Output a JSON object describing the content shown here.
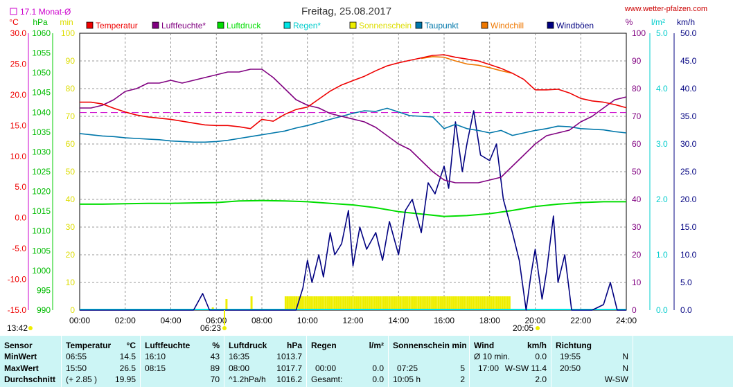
{
  "title": "Freitag, 25.08.2017",
  "website": "www.wetter-pfalzen.com",
  "monthly_avg_label": "17.1 Monat-Ø",
  "time_markers": {
    "left_time": "13:42",
    "sunrise": "06:23",
    "sunset": "20:05"
  },
  "colors": {
    "temperature": "#ee0000",
    "humidity": "#800080",
    "pressure": "#00dd00",
    "rain": "#00e5e5",
    "sunshine": "#eeee00",
    "dewpoint": "#0077aa",
    "windchill": "#ee7700",
    "gusts": "#000080",
    "month_avg": "#cc00cc"
  },
  "legend": [
    {
      "label": "Temperatur",
      "color": "#ee0000"
    },
    {
      "label": "Luftfeuchte*",
      "color": "#800080"
    },
    {
      "label": "Luftdruck",
      "color": "#00dd00"
    },
    {
      "label": "Regen*",
      "color": "#00e5e5"
    },
    {
      "label": "Sonnenschein",
      "color": "#eeee00"
    },
    {
      "label": "Taupunkt",
      "color": "#0077aa"
    },
    {
      "label": "Windchill",
      "color": "#ee7700"
    },
    {
      "label": "Windböen",
      "color": "#000080"
    }
  ],
  "chart_data": {
    "type": "line",
    "x_ticks": [
      "00:00",
      "02:00",
      "04:00",
      "06:00",
      "08:00",
      "10:00",
      "12:00",
      "14:00",
      "16:00",
      "18:00",
      "20:00",
      "22:00",
      "24:00"
    ],
    "xlim": [
      0,
      24
    ],
    "axes": {
      "temp": {
        "unit": "°C",
        "range": [
          -15,
          30
        ],
        "ticks": [
          "30.0",
          "25.0",
          "20.0",
          "15.0",
          "10.0",
          "5.0",
          "0.0",
          "-5.0",
          "-10.0",
          "-15.0"
        ]
      },
      "pressure": {
        "unit": "hPa",
        "range": [
          990,
          1060
        ],
        "ticks": [
          "1060",
          "1055",
          "1050",
          "1045",
          "1040",
          "1035",
          "1030",
          "1025",
          "1020",
          "1015",
          "1010",
          "1005",
          "1000",
          "995",
          "990"
        ]
      },
      "sun": {
        "unit": "min",
        "range": [
          0,
          100
        ],
        "ticks": [
          "100",
          "90",
          "80",
          "70",
          "60",
          "50",
          "40",
          "30",
          "20",
          "10",
          "0"
        ]
      },
      "humidity": {
        "unit": "%",
        "range": [
          0,
          100
        ],
        "ticks": [
          "100",
          "90",
          "80",
          "70",
          "60",
          "50",
          "40",
          "30",
          "20",
          "10",
          "0"
        ]
      },
      "rain": {
        "unit": "l/m²",
        "range": [
          0,
          5
        ],
        "ticks": [
          "5.0",
          "4.0",
          "3.0",
          "2.0",
          "1.0",
          "0.0"
        ]
      },
      "wind": {
        "unit": "km/h",
        "range": [
          0,
          50
        ],
        "ticks": [
          "50.0",
          "45.0",
          "40.0",
          "35.0",
          "30.0",
          "25.0",
          "20.0",
          "15.0",
          "10.0",
          "5.0",
          "0.0"
        ]
      }
    },
    "month_avg_temp": 17.1,
    "series": [
      {
        "name": "Temperatur",
        "axis": "temp",
        "x": [
          0,
          0.5,
          1,
          1.5,
          2,
          2.5,
          3,
          3.5,
          4,
          4.5,
          5,
          5.5,
          6,
          6.5,
          7,
          7.5,
          8,
          8.5,
          9,
          9.5,
          10,
          10.5,
          11,
          11.5,
          12,
          12.5,
          13,
          13.5,
          14,
          14.5,
          15,
          15.5,
          16,
          16.5,
          17,
          17.5,
          18,
          18.5,
          19,
          19.5,
          20,
          20.5,
          21,
          21.5,
          22,
          22.5,
          23,
          23.5,
          24
        ],
        "values": [
          18.8,
          18.8,
          18.5,
          17.8,
          17.2,
          16.7,
          16.4,
          16.2,
          16.0,
          15.7,
          15.4,
          15.1,
          15.0,
          15.0,
          14.8,
          14.5,
          16.0,
          15.7,
          16.8,
          17.6,
          18.0,
          19.3,
          20.6,
          21.6,
          22.3,
          23.0,
          23.9,
          24.7,
          25.2,
          25.6,
          26.0,
          26.4,
          26.5,
          26.1,
          25.8,
          25.5,
          24.9,
          24.3,
          23.5,
          22.5,
          20.8,
          20.8,
          20.9,
          20.3,
          19.4,
          19.0,
          18.8,
          18.4,
          17.9
        ]
      },
      {
        "name": "Windchill",
        "axis": "temp",
        "x": [
          15,
          15.5,
          16,
          16.5,
          17,
          17.5,
          18,
          18.5,
          19
        ],
        "values": [
          25.9,
          26.2,
          26.1,
          25.5,
          25.0,
          24.8,
          24.4,
          23.9,
          23.5
        ]
      },
      {
        "name": "Luftfeuchte",
        "axis": "humidity",
        "x": [
          0,
          0.5,
          1,
          1.5,
          2,
          2.5,
          3,
          3.5,
          4,
          4.5,
          5,
          5.5,
          6,
          6.5,
          7,
          7.5,
          8,
          8.5,
          9,
          9.5,
          10,
          10.5,
          11,
          11.5,
          12,
          12.5,
          13,
          13.5,
          14,
          14.5,
          15,
          15.5,
          16,
          16.5,
          17,
          17.5,
          18,
          18.5,
          19,
          19.5,
          20,
          20.5,
          21,
          21.5,
          22,
          22.5,
          23,
          23.5,
          24
        ],
        "values": [
          73,
          73,
          74,
          76,
          79,
          80,
          82,
          82,
          83,
          82,
          83,
          84,
          85,
          86,
          86,
          87,
          87,
          84,
          80,
          76,
          74,
          73,
          71,
          70,
          69,
          68,
          66,
          63,
          60,
          58,
          54,
          50,
          47,
          46,
          46,
          46,
          47,
          48,
          52,
          56,
          60,
          63,
          64,
          65,
          68,
          70,
          73,
          76,
          77
        ]
      },
      {
        "name": "Taupunkt",
        "axis": "temp",
        "x": [
          0,
          0.5,
          1,
          1.5,
          2,
          2.5,
          3,
          3.5,
          4,
          4.5,
          5,
          5.5,
          6,
          6.5,
          7,
          7.5,
          8,
          8.5,
          9,
          9.5,
          10,
          10.5,
          11,
          11.5,
          12,
          12.5,
          13,
          13.5,
          14,
          14.5,
          15,
          15.5,
          16,
          16.5,
          17,
          17.5,
          18,
          18.5,
          19,
          19.5,
          20,
          20.5,
          21,
          21.5,
          22,
          22.5,
          23,
          23.5,
          24
        ],
        "values": [
          13.7,
          13.5,
          13.3,
          13.2,
          13.0,
          12.9,
          12.8,
          12.7,
          12.5,
          12.4,
          12.3,
          12.3,
          12.4,
          12.6,
          12.9,
          13.2,
          13.5,
          13.8,
          14.1,
          14.6,
          15.0,
          15.5,
          16.0,
          16.5,
          17.0,
          17.4,
          17.3,
          17.8,
          17.2,
          16.6,
          16.5,
          16.4,
          14.5,
          15.2,
          14.5,
          14.2,
          13.8,
          14.2,
          13.4,
          13.8,
          14.2,
          14.5,
          14.9,
          14.8,
          14.5,
          14.4,
          14.3,
          14.0,
          13.8
        ]
      },
      {
        "name": "Luftdruck",
        "axis": "pressure",
        "x": [
          0,
          1,
          2,
          3,
          4,
          5,
          6,
          7,
          8,
          9,
          10,
          11,
          12,
          13,
          14,
          15,
          16,
          17,
          18,
          19,
          20,
          21,
          22,
          23,
          24
        ],
        "values": [
          1016.8,
          1016.8,
          1016.9,
          1017.0,
          1017.0,
          1017.1,
          1017.2,
          1017.6,
          1017.7,
          1017.6,
          1017.4,
          1017.0,
          1016.6,
          1015.9,
          1014.9,
          1014.3,
          1013.7,
          1013.9,
          1014.4,
          1015.2,
          1016.2,
          1016.8,
          1017.2,
          1017.4,
          1017.4
        ]
      },
      {
        "name": "Windböen",
        "axis": "wind",
        "x": [
          0,
          5.0,
          5.4,
          5.7,
          6.0,
          6.1,
          9.5,
          9.8,
          10,
          10.2,
          10.5,
          10.7,
          11,
          11.2,
          11.5,
          11.8,
          12,
          12.3,
          12.6,
          13,
          13.3,
          13.6,
          14,
          14.3,
          14.6,
          15,
          15.3,
          15.6,
          16,
          16.2,
          16.5,
          16.8,
          17,
          17.3,
          17.6,
          18,
          18.3,
          18.6,
          19,
          19.3,
          19.6,
          19.8,
          20.0,
          20.3,
          20.5,
          20.8,
          21.0,
          21.3,
          21.6,
          22.2,
          22.5,
          23.0,
          23.3,
          23.6,
          24
        ],
        "values": [
          0,
          0,
          3,
          0,
          0,
          0,
          0,
          4,
          9,
          5,
          10,
          6,
          14,
          10,
          12,
          18,
          8,
          15,
          11,
          14,
          9,
          16,
          10,
          18,
          20,
          14,
          23,
          21,
          26,
          22,
          34,
          25,
          30,
          36,
          28,
          27,
          30,
          20,
          14,
          9,
          0,
          6,
          11,
          2,
          7,
          17,
          5,
          10,
          0,
          0,
          0,
          1,
          5,
          0,
          0
        ]
      }
    ],
    "sunshine": {
      "axis": "sun",
      "bars": [
        {
          "x": 5.8,
          "value": 1
        },
        {
          "x": 6.4,
          "value": 4
        },
        {
          "x": 7.5,
          "value": 5
        },
        {
          "range": [
            9.0,
            18.9
          ],
          "value": 5
        }
      ]
    }
  },
  "table": {
    "header": {
      "sensor": "Sensor",
      "temp": "Temperatur",
      "temp_unit": "°C",
      "hum": "Luftfeuchte",
      "hum_unit": "%",
      "press": "Luftdruck",
      "press_unit": "hPa",
      "rain": "Regen",
      "rain_unit": "l/m²",
      "sun": "Sonnenschein min",
      "wind": "Wind",
      "wind_unit": "km/h",
      "dir": "Richtung"
    },
    "min": {
      "label": "MinWert",
      "temp_time": "06:55",
      "temp_val": "14.5",
      "hum_time": "16:10",
      "hum_val": "43",
      "press_time": "16:35",
      "press_val": "1013.7",
      "wind_label": "Ø 10 min.",
      "wind_val": "0.0",
      "dir_time": "19:55",
      "dir_val": "N"
    },
    "max": {
      "label": "MaxWert",
      "temp_time": "15:50",
      "temp_val": "26.5",
      "hum_time": "08:15",
      "hum_val": "89",
      "press_time": "08:00",
      "press_val": "1017.7",
      "rain_time": "00:00",
      "rain_val": "0.0",
      "sun_time": "07:25",
      "sun_val": "5",
      "wind_time": "17:00",
      "wind_val": "W-SW 11.4",
      "dir_time": "20:50",
      "dir_val": "N"
    },
    "avg": {
      "label": "Durchschnitt",
      "temp_diff": "(+ 2.85 )",
      "temp_val": "19.95",
      "hum_val": "70",
      "press_trend": "^1.2hPa/h",
      "press_val": "1016.2",
      "rain_label": "Gesamt:",
      "rain_val": "0.0",
      "sun_total": "10:05 h",
      "sun_val": "2",
      "wind_val": "2.0",
      "dir_val": "W-SW"
    }
  }
}
